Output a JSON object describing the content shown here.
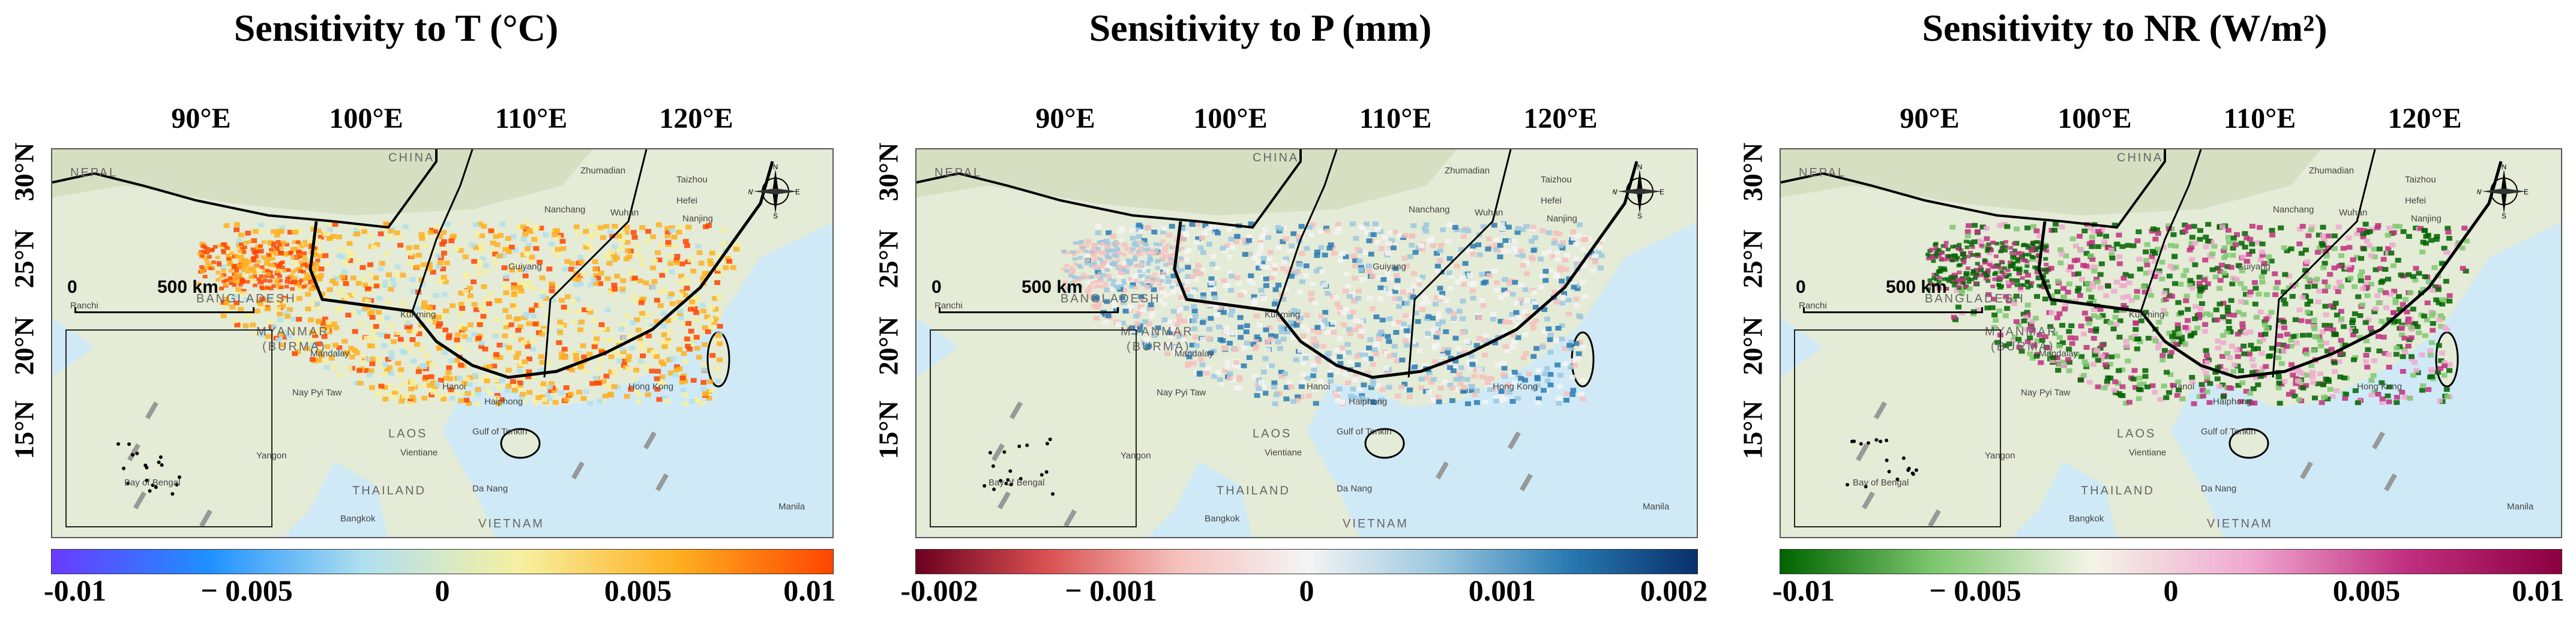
{
  "panels": [
    {
      "title": "Sensitivity to T (°C)",
      "colorbar": {
        "ticks": [
          "-0.01",
          "− 0.005",
          "0",
          "0.005",
          "0.01"
        ],
        "colors": [
          "#6a3bff",
          "#1e90ff",
          "#b0e0ee",
          "#f7f0a0",
          "#ffb020",
          "#ff4500"
        ]
      }
    },
    {
      "title": "Sensitivity to P (mm)",
      "colorbar": {
        "ticks": [
          "-0.002",
          "− 0.001",
          "0",
          "0.001",
          "0.002"
        ],
        "colors": [
          "#6b0020",
          "#d95050",
          "#f6c0bc",
          "#f4f4f4",
          "#9cc8e0",
          "#2a7bb3",
          "#08306b"
        ]
      }
    },
    {
      "title": "Sensitivity to NR (W/m²)",
      "colorbar": {
        "ticks": [
          "-0.01",
          "− 0.005",
          "0",
          "0.005",
          "0.01"
        ],
        "colors": [
          "#006400",
          "#7fc870",
          "#f4f4e8",
          "#f0a8d0",
          "#c03080",
          "#8b0040"
        ]
      }
    }
  ],
  "longitude_labels": [
    "90°E",
    "100°E",
    "110°E",
    "120°E"
  ],
  "latitude_labels": [
    "30°N",
    "25°N",
    "20°N",
    "15°N"
  ],
  "scale_bar": {
    "zero": "0",
    "distance": "500 km"
  },
  "compass_letters": {
    "n": "N",
    "s": "S",
    "e": "E",
    "w": "W"
  },
  "basemap_labels": {
    "china": "CHINA",
    "myanmar": "MYANMAR",
    "burma": "(BURMA)",
    "laos": "LAOS",
    "thailand": "THAILAND",
    "vietnam": "VIETNAM",
    "bangladesh": "BANGLADESH",
    "nepal": "NEPAL",
    "hanoi": "Hanoi",
    "vientiane": "Vientiane",
    "bangkok": "Bangkok",
    "da_nang": "Da Nang",
    "hong_kong": "Hong Kong",
    "haiphong": "Haiphong",
    "mandalay": "Mandalay",
    "nay_pyi_taw": "Nay Pyi Taw",
    "yangon": "Yangon",
    "ranchi": "Ranchi",
    "zhumadian": "Zhumadian",
    "nanchang": "Nanchang",
    "wuhan": "Wuhan",
    "hefei": "Hefei",
    "taizhou": "Taizhou",
    "nanjing": "Nanjing",
    "kunming": "Kunming",
    "guiyang": "Guiyang",
    "manila": "Manila",
    "gulf_of_tonkin": "Gulf of Tonkin",
    "bay_of_bengal": "Bay of Bengal"
  }
}
